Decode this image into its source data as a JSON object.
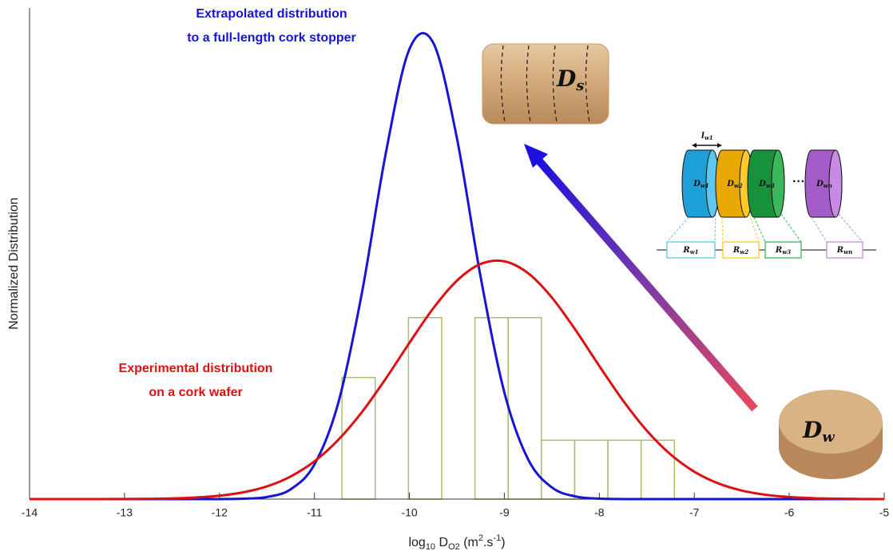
{
  "chart_data": {
    "type": "line",
    "xlabel": [
      "log",
      "10",
      " D",
      "O2",
      " (m",
      "2",
      ".s",
      "-1",
      ")"
    ],
    "ylabel": "Normalized Distribution",
    "xlim": [
      -14,
      -5
    ],
    "ylim": [
      0,
      1.05
    ],
    "xticks": [
      -14,
      -13,
      -12,
      -11,
      -10,
      -9,
      -8,
      -7,
      -6,
      -5
    ],
    "x": [
      -14,
      -13.75,
      -13.5,
      -13.25,
      -13,
      -12.75,
      -12.5,
      -12.25,
      -12,
      -11.75,
      -11.5,
      -11.25,
      -11,
      -10.75,
      -10.5,
      -10.25,
      -10,
      -9.75,
      -9.5,
      -9.25,
      -9,
      -8.75,
      -8.5,
      -8.25,
      -8,
      -7.75,
      -7.5,
      -7.25,
      -7,
      -6.75,
      -6.5,
      -6.25,
      -6,
      -5.75,
      -5.5,
      -5.25,
      -5
    ],
    "series": [
      {
        "label": [
          "Extrapolated distribution",
          "to a full-length cork stopper"
        ],
        "color": "#1515d6",
        "values": [
          0,
          0,
          0,
          0,
          0,
          0,
          0,
          0,
          0.0001,
          0.0008,
          0.0046,
          0.021,
          0.074,
          0.205,
          0.441,
          0.738,
          0.962,
          0.976,
          0.772,
          0.475,
          0.228,
          0.085,
          0.025,
          0.0056,
          0.001,
          0.0001,
          0,
          0,
          0,
          0,
          0,
          0,
          0,
          0,
          0,
          0,
          0
        ]
      },
      {
        "label": [
          "Experimental distribution",
          "on a cork wafer"
        ],
        "color": "#dd1111",
        "values": [
          0,
          0,
          0,
          0.0001,
          0.0002,
          0.0006,
          0.0015,
          0.0034,
          0.0072,
          0.0145,
          0.0272,
          0.0484,
          0.0808,
          0.1265,
          0.1861,
          0.2572,
          0.334,
          0.4076,
          0.467,
          0.5027,
          0.5084,
          0.483,
          0.431,
          0.3613,
          0.2845,
          0.2106,
          0.1464,
          0.0956,
          0.0586,
          0.0338,
          0.0183,
          0.0093,
          0.0044,
          0.002,
          0.0008,
          0.0003,
          0.0001
        ]
      }
    ],
    "histogram": {
      "color": "#a9c26b",
      "bins": [
        -10.71,
        -10.36,
        -10.01,
        -9.66,
        -9.31,
        -8.96,
        -8.61,
        -8.26,
        -7.91,
        -7.56,
        -7.21
      ],
      "counts": [
        0.26,
        0,
        0.388,
        0,
        0.388,
        0.388,
        0.126,
        0.126,
        0.126,
        0.126
      ]
    }
  },
  "inset": {
    "stopper": {
      "main": "D",
      "sub": "s"
    },
    "wafer": {
      "main": "D",
      "sub": "w"
    },
    "length": {
      "main": "l",
      "sub": "w1"
    },
    "discs": [
      {
        "main": "D",
        "sub": "w1"
      },
      {
        "main": "D",
        "sub": "w2"
      },
      {
        "main": "D",
        "sub": "w3"
      },
      {
        "main": "D",
        "sub": "wn"
      }
    ],
    "ellipsis": "···",
    "resistors": [
      {
        "main": "R",
        "sub": "w1"
      },
      {
        "main": "R",
        "sub": "w2"
      },
      {
        "main": "R",
        "sub": "w3"
      },
      {
        "main": "R",
        "sub": "wn"
      }
    ]
  }
}
